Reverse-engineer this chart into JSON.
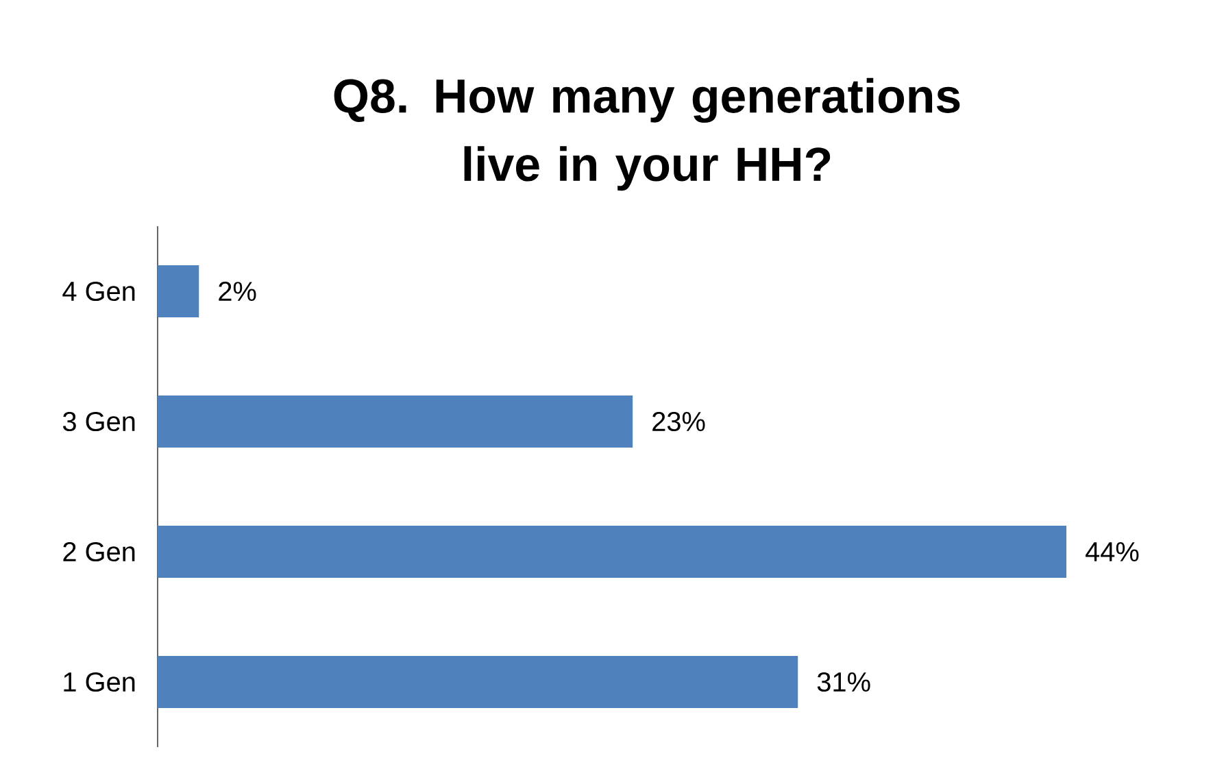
{
  "chart_data": {
    "type": "bar",
    "orientation": "horizontal",
    "title": "Q8. How many generations live in your HH?",
    "categories": [
      "4 Gen",
      "3 Gen",
      "2 Gen",
      "1 Gen"
    ],
    "values": [
      2,
      23,
      44,
      31
    ],
    "value_labels": [
      "2%",
      "23%",
      "44%",
      "31%"
    ],
    "color": "#4f81bd"
  }
}
